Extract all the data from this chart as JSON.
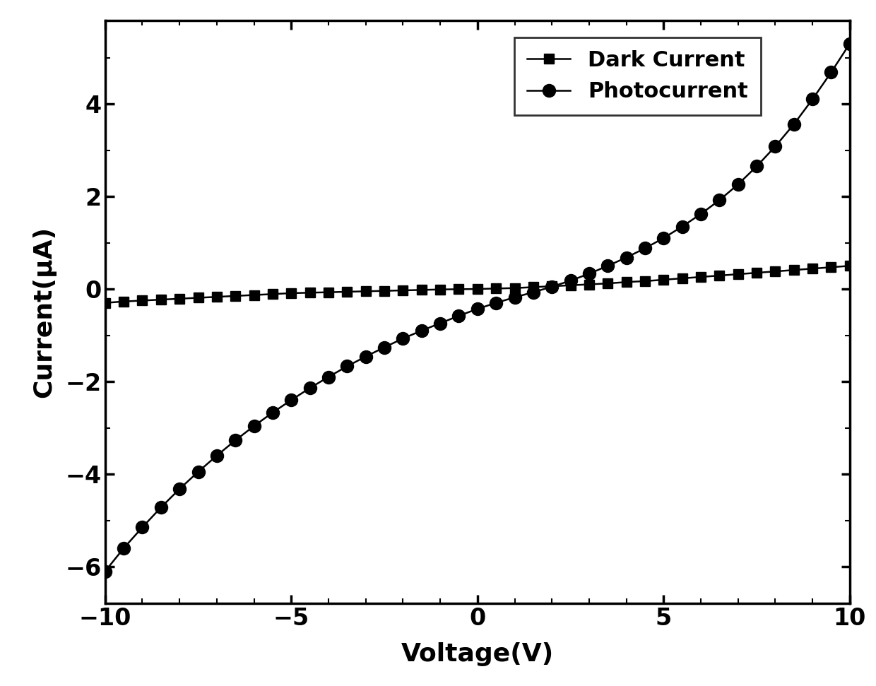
{
  "voltage": [
    -10,
    -9.5,
    -9,
    -8.5,
    -8,
    -7.5,
    -7,
    -6.5,
    -6,
    -5.5,
    -5,
    -4.5,
    -4,
    -3.5,
    -3,
    -2.5,
    -2,
    -1.5,
    -1,
    -0.5,
    0,
    0.5,
    1,
    1.5,
    2,
    2.5,
    3,
    3.5,
    4,
    4.5,
    5,
    5.5,
    6,
    6.5,
    7,
    7.5,
    8,
    8.5,
    9,
    9.5,
    10
  ],
  "dark_current": [
    -0.3,
    -0.27,
    -0.25,
    -0.23,
    -0.21,
    -0.19,
    -0.17,
    -0.15,
    -0.13,
    -0.11,
    -0.09,
    -0.08,
    -0.07,
    -0.06,
    -0.05,
    -0.04,
    -0.03,
    -0.02,
    -0.01,
    -0.005,
    0.0,
    0.01,
    0.02,
    0.04,
    0.06,
    0.08,
    0.1,
    0.12,
    0.15,
    0.17,
    0.2,
    0.23,
    0.26,
    0.29,
    0.32,
    0.35,
    0.38,
    0.41,
    0.44,
    0.47,
    0.5
  ],
  "photocurrent": [
    -6.1,
    -5.6,
    -5.15,
    -4.72,
    -4.32,
    -3.95,
    -3.6,
    -3.27,
    -2.96,
    -2.67,
    -2.4,
    -2.14,
    -1.9,
    -1.67,
    -1.46,
    -1.26,
    -1.07,
    -0.9,
    -0.74,
    -0.58,
    -0.43,
    -0.3,
    -0.18,
    -0.07,
    0.05,
    0.18,
    0.33,
    0.5,
    0.68,
    0.88,
    1.1,
    1.35,
    1.62,
    1.92,
    2.26,
    2.65,
    3.08,
    3.56,
    4.1,
    4.68,
    5.3
  ],
  "xlabel": "Voltage(V)",
  "ylabel": "Current(μA)",
  "xlim": [
    -10,
    10
  ],
  "ylim": [
    -6.8,
    5.8
  ],
  "yticks": [
    -6,
    -4,
    -2,
    0,
    2,
    4
  ],
  "xticks": [
    -10,
    -5,
    0,
    5,
    10
  ],
  "dark_label": "Dark Current",
  "photo_label": "Photocurrent",
  "line_color": "#000000",
  "marker_square": "s",
  "marker_circle": "o",
  "markersize_dark": 10,
  "markersize_photo": 13,
  "linewidth": 1.8,
  "xlabel_fontsize": 26,
  "ylabel_fontsize": 26,
  "tick_fontsize": 24,
  "legend_fontsize": 22,
  "figure_facecolor": "#ffffff",
  "axes_facecolor": "#ffffff"
}
